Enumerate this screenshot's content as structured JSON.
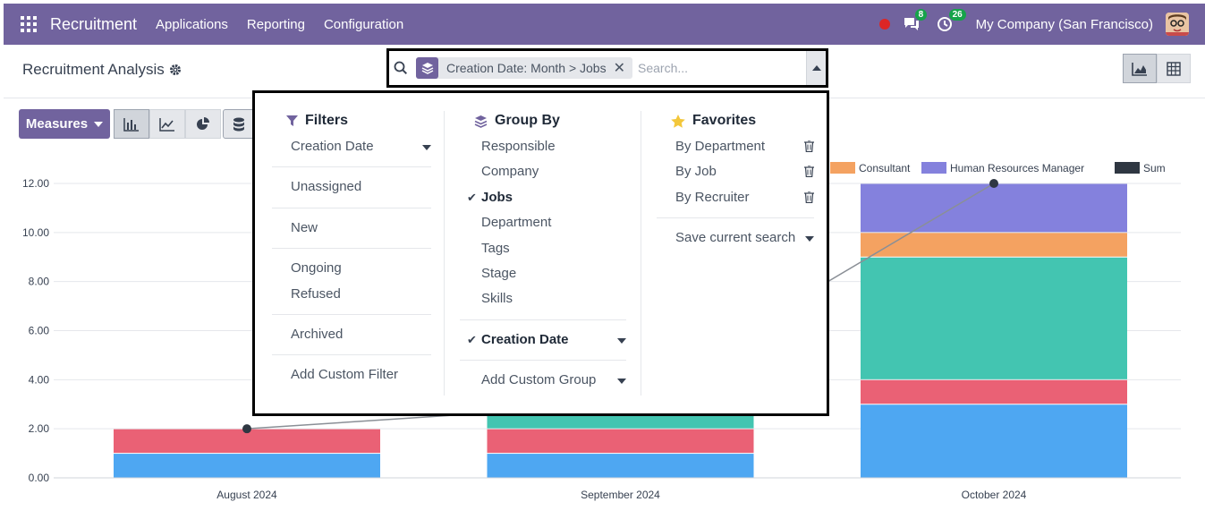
{
  "navbar": {
    "brand": "Recruitment",
    "items": [
      "Applications",
      "Reporting",
      "Configuration"
    ],
    "messages_count": "8",
    "activities_count": "26",
    "company": "My Company (San Francisco)"
  },
  "control": {
    "title": "Recruitment Analysis",
    "facet_label": "Creation Date: Month > Jobs",
    "search_placeholder": "Search..."
  },
  "actions": {
    "measures_label": "Measures"
  },
  "filters": {
    "header": "Filters",
    "groups": [
      [
        "Creation Date"
      ],
      [
        "Unassigned"
      ],
      [
        "New"
      ],
      [
        "Ongoing",
        "Refused"
      ],
      [
        "Archived"
      ],
      [
        "Add Custom Filter"
      ]
    ]
  },
  "group_by": {
    "header": "Group By",
    "items": [
      "Responsible",
      "Company",
      "Jobs",
      "Department",
      "Tags",
      "Stage",
      "Skills"
    ],
    "checked": "Jobs",
    "date_item": "Creation Date",
    "custom": "Add Custom Group"
  },
  "favorites": {
    "header": "Favorites",
    "items": [
      "By Department",
      "By Job",
      "By Recruiter"
    ],
    "save": "Save current search"
  },
  "chart_data": {
    "type": "bar",
    "stacked": true,
    "categories": [
      "August 2024",
      "September 2024",
      "October 2024"
    ],
    "ylim": [
      0,
      12
    ],
    "yticks": [
      "0.00",
      "2.00",
      "4.00",
      "6.00",
      "8.00",
      "10.00",
      "12.00"
    ],
    "series": [
      {
        "name": "",
        "color": "#4ea7f2",
        "values": [
          1,
          1,
          3
        ]
      },
      {
        "name": "",
        "color": "#ea6175",
        "values": [
          1,
          1,
          1
        ]
      },
      {
        "name": "",
        "color": "#43c5b1",
        "values": [
          0,
          1,
          5
        ]
      },
      {
        "name": "Consultant",
        "color": "#f4a261",
        "values": [
          0,
          0,
          1
        ]
      },
      {
        "name": "Human Resources Manager",
        "color": "#8481dd",
        "values": [
          0,
          0,
          2
        ]
      }
    ],
    "sum": {
      "name": "Sum",
      "color": "#2f3742",
      "values": [
        2,
        3,
        12
      ]
    },
    "legend_visible": [
      "Consultant",
      "Human Resources Manager",
      "Sum"
    ],
    "grid": true
  }
}
